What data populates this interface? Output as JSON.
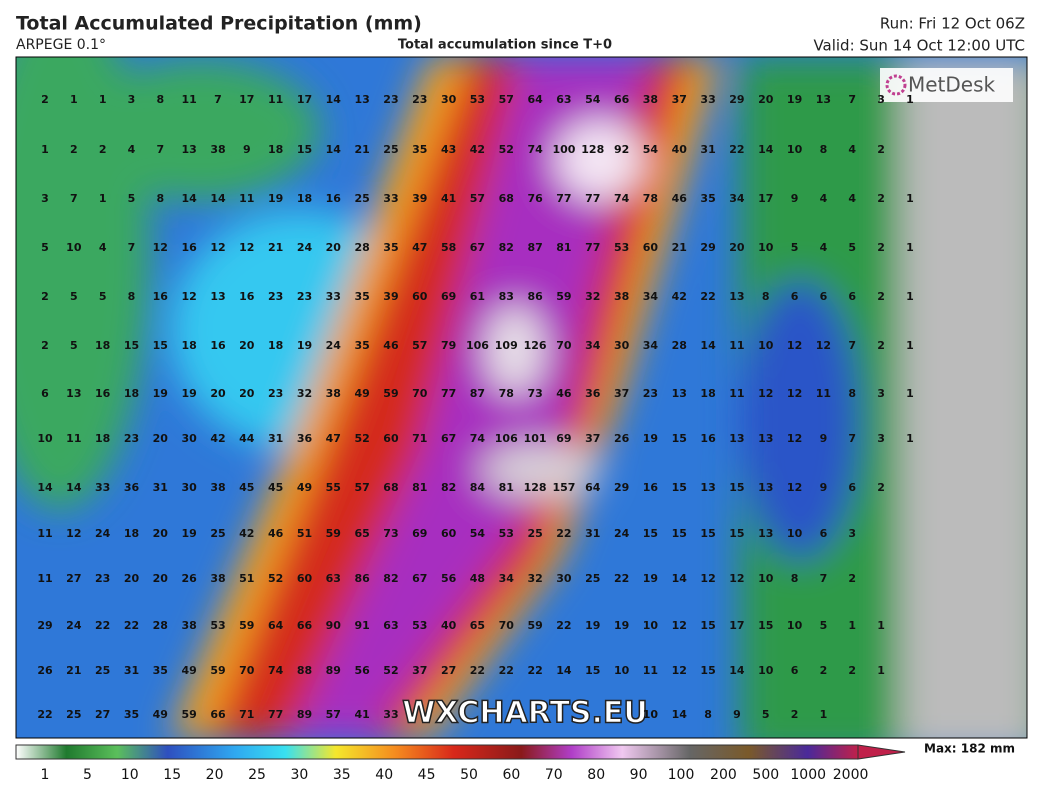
{
  "header": {
    "title": "Total Accumulated Precipitation (mm)",
    "model": "ARPEGE 0.1°",
    "subtitle": "Total accumulation since T+0",
    "run": "Run: Fri 12 Oct 06Z",
    "valid": "Valid: Sun 14 Oct 12:00 UTC"
  },
  "map": {
    "logo": "MetDesk",
    "watermark": "WXCHARTS.EU",
    "grid": [
      [
        2,
        1,
        1,
        3,
        8,
        11,
        7,
        17,
        11,
        17,
        14,
        13,
        23,
        23,
        30,
        53,
        57,
        64,
        63,
        54,
        66,
        38,
        37,
        33,
        29,
        20,
        19,
        13,
        7,
        3,
        1
      ],
      [
        1,
        2,
        2,
        4,
        7,
        13,
        38,
        9,
        18,
        15,
        14,
        21,
        25,
        35,
        43,
        42,
        52,
        74,
        100,
        128,
        92,
        54,
        40,
        31,
        22,
        14,
        10,
        8,
        4,
        2,
        null
      ],
      [
        3,
        7,
        1,
        5,
        8,
        14,
        14,
        11,
        19,
        18,
        16,
        25,
        33,
        39,
        41,
        57,
        68,
        76,
        77,
        77,
        74,
        78,
        46,
        35,
        34,
        17,
        9,
        4,
        4,
        2,
        1
      ],
      [
        5,
        10,
        4,
        7,
        12,
        16,
        12,
        12,
        21,
        24,
        20,
        28,
        35,
        47,
        58,
        67,
        82,
        87,
        81,
        77,
        53,
        60,
        21,
        29,
        20,
        10,
        5,
        4,
        5,
        2,
        1
      ],
      [
        2,
        5,
        5,
        8,
        16,
        12,
        13,
        16,
        23,
        23,
        33,
        35,
        39,
        60,
        69,
        61,
        83,
        86,
        59,
        32,
        38,
        34,
        42,
        22,
        13,
        8,
        6,
        6,
        6,
        2,
        1
      ],
      [
        2,
        5,
        18,
        15,
        15,
        18,
        16,
        20,
        18,
        19,
        24,
        35,
        46,
        57,
        79,
        106,
        109,
        126,
        70,
        34,
        30,
        34,
        28,
        14,
        11,
        10,
        12,
        12,
        7,
        2,
        1
      ],
      [
        6,
        13,
        16,
        18,
        19,
        19,
        20,
        20,
        23,
        32,
        38,
        49,
        59,
        70,
        77,
        87,
        78,
        73,
        46,
        36,
        37,
        23,
        13,
        18,
        11,
        12,
        12,
        11,
        8,
        3,
        1
      ],
      [
        10,
        11,
        18,
        23,
        20,
        30,
        42,
        44,
        31,
        36,
        47,
        52,
        60,
        71,
        67,
        74,
        106,
        101,
        69,
        37,
        26,
        19,
        15,
        16,
        13,
        13,
        12,
        9,
        7,
        3,
        1
      ],
      [
        14,
        14,
        33,
        36,
        31,
        30,
        38,
        45,
        45,
        49,
        55,
        57,
        68,
        81,
        82,
        84,
        81,
        128,
        157,
        64,
        29,
        16,
        15,
        13,
        15,
        13,
        12,
        9,
        6,
        2,
        null
      ],
      [
        11,
        12,
        24,
        18,
        20,
        19,
        25,
        42,
        46,
        51,
        59,
        65,
        73,
        69,
        60,
        54,
        53,
        25,
        22,
        31,
        24,
        15,
        15,
        15,
        15,
        13,
        10,
        6,
        3,
        null,
        null
      ],
      [
        11,
        27,
        23,
        20,
        20,
        26,
        38,
        51,
        52,
        60,
        63,
        86,
        82,
        67,
        56,
        48,
        34,
        32,
        30,
        25,
        22,
        19,
        14,
        12,
        12,
        10,
        8,
        7,
        2,
        null,
        null
      ],
      [
        29,
        24,
        22,
        22,
        28,
        38,
        53,
        59,
        64,
        66,
        90,
        91,
        63,
        53,
        40,
        65,
        70,
        59,
        22,
        19,
        19,
        10,
        12,
        15,
        17,
        15,
        10,
        5,
        1,
        1,
        null
      ],
      [
        26,
        21,
        25,
        31,
        35,
        49,
        59,
        70,
        74,
        88,
        89,
        56,
        52,
        37,
        27,
        22,
        22,
        22,
        14,
        15,
        10,
        11,
        12,
        15,
        14,
        10,
        6,
        2,
        2,
        1,
        null
      ],
      [
        22,
        25,
        27,
        35,
        49,
        59,
        66,
        71,
        77,
        89,
        57,
        41,
        33,
        null,
        null,
        null,
        null,
        null,
        null,
        null,
        null,
        10,
        14,
        8,
        9,
        5,
        2,
        1,
        null,
        null,
        null
      ]
    ]
  },
  "colorbar": {
    "labels": [
      1,
      5,
      10,
      15,
      20,
      25,
      30,
      35,
      40,
      45,
      50,
      60,
      70,
      80,
      90,
      100,
      200,
      500,
      1000,
      2000
    ],
    "max": "Max: 182 mm"
  }
}
